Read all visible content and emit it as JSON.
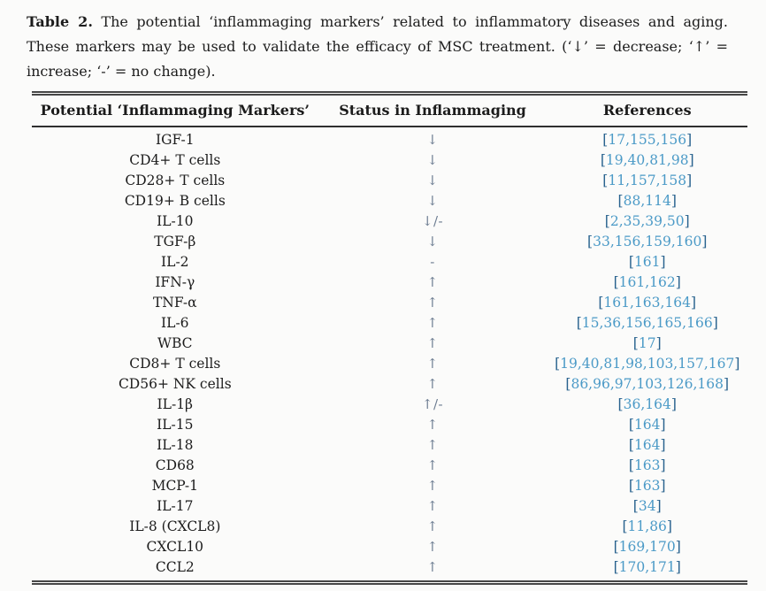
{
  "caption": {
    "label": "Table 2.",
    "text": " The potential ‘inflammaging markers’ related to inflammatory diseases and aging. These markers may be used to validate the efficacy of MSC treatment. (‘↓’ = decrease; ‘↑’ = increase; ‘-’ = no change)."
  },
  "table": {
    "columns": [
      "Potential ‘Inflammaging Markers’",
      "Status in Inflammaging",
      "References"
    ],
    "ref_open": "[",
    "ref_close": "]",
    "rows": [
      {
        "marker": "IGF-1",
        "status": "↓",
        "refs": "17,155,156"
      },
      {
        "marker": "CD4+ T cells",
        "status": "↓",
        "refs": "19,40,81,98"
      },
      {
        "marker": "CD28+ T cells",
        "status": "↓",
        "refs": "11,157,158"
      },
      {
        "marker": "CD19+ B cells",
        "status": "↓",
        "refs": "88,114"
      },
      {
        "marker": "IL-10",
        "status": "↓/-",
        "refs": "2,35,39,50"
      },
      {
        "marker": "TGF-β",
        "status": "↓",
        "refs": "33,156,159,160"
      },
      {
        "marker": "IL-2",
        "status": "-",
        "refs": "161"
      },
      {
        "marker": "IFN-γ",
        "status": "↑",
        "refs": "161,162"
      },
      {
        "marker": "TNF-α",
        "status": "↑",
        "refs": "161,163,164"
      },
      {
        "marker": "IL-6",
        "status": "↑",
        "refs": "15,36,156,165,166"
      },
      {
        "marker": "WBC",
        "status": "↑",
        "refs": "17"
      },
      {
        "marker": "CD8+ T cells",
        "status": "↑",
        "refs": "19,40,81,98,103,157,167"
      },
      {
        "marker": "CD56+ NK cells",
        "status": "↑",
        "refs": "86,96,97,103,126,168"
      },
      {
        "marker": "IL-1β",
        "status": "↑/-",
        "refs": "36,164"
      },
      {
        "marker": "IL-15",
        "status": "↑",
        "refs": "164"
      },
      {
        "marker": "IL-18",
        "status": "↑",
        "refs": "164"
      },
      {
        "marker": "CD68",
        "status": "↑",
        "refs": "163"
      },
      {
        "marker": "MCP-1",
        "status": "↑",
        "refs": "163"
      },
      {
        "marker": "IL-17",
        "status": "↑",
        "refs": "34"
      },
      {
        "marker": "IL-8 (CXCL8)",
        "status": "↑",
        "refs": "11,86"
      },
      {
        "marker": "CXCL10",
        "status": "↑",
        "refs": "169,170"
      },
      {
        "marker": "CCL2",
        "status": "↑",
        "refs": "170,171"
      }
    ]
  },
  "colors": {
    "page_background": "#fbfbfa",
    "text": "#1c1c1c",
    "rule": "#474747",
    "status_symbol": "#6b7b90",
    "reference_bracket": "#28628e",
    "reference_link": "#4b9ac7"
  }
}
